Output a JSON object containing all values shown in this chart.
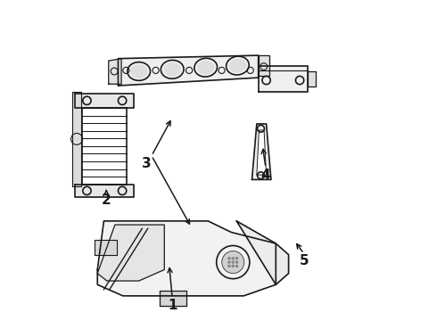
{
  "background_color": "#ffffff",
  "line_color": "#1a1a1a",
  "labels": [
    "1",
    "2",
    "3",
    "4",
    "5"
  ],
  "arrows": [
    {
      "lpos": [
        0.355,
        0.045
      ],
      "astart": [
        0.355,
        0.068
      ],
      "aend": [
        0.345,
        0.175
      ]
    },
    {
      "lpos": [
        0.148,
        0.375
      ],
      "astart": [
        0.148,
        0.397
      ],
      "aend": [
        0.148,
        0.418
      ]
    },
    {
      "lpos": [
        0.275,
        0.49
      ],
      "astart": [
        0.29,
        0.515
      ],
      "aend": [
        0.355,
        0.635
      ]
    },
    {
      "lpos": [
        0.648,
        0.455
      ],
      "astart": [
        0.648,
        0.478
      ],
      "aend": [
        0.638,
        0.548
      ]
    },
    {
      "lpos": [
        0.768,
        0.185
      ],
      "astart": [
        0.768,
        0.208
      ],
      "aend": [
        0.738,
        0.248
      ]
    }
  ],
  "extra_arrow": {
    "astart": [
      0.29,
      0.515
    ],
    "aend": [
      0.415,
      0.29
    ]
  }
}
